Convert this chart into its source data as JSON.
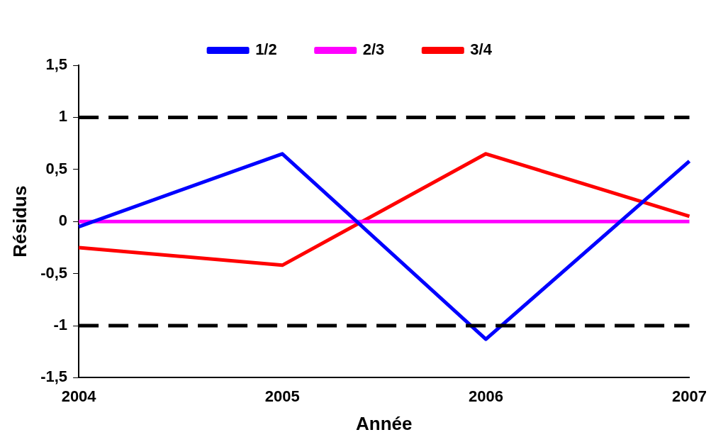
{
  "chart_data": {
    "type": "line",
    "xlabel": "Année",
    "ylabel": "Résidus",
    "categories": [
      "2004",
      "2005",
      "2006",
      "2007"
    ],
    "series": [
      {
        "name": "1/2",
        "color": "#0000ff",
        "values": [
          -0.05,
          0.65,
          -1.13,
          0.58
        ]
      },
      {
        "name": "2/3",
        "color": "#ff00ff",
        "values": [
          0,
          0,
          0,
          0
        ]
      },
      {
        "name": "3/4",
        "color": "#ff0000",
        "values": [
          -0.25,
          -0.42,
          0.65,
          0.05
        ]
      }
    ],
    "ylim": [
      -1.5,
      1.5
    ],
    "yticks": [
      {
        "value": -1.5,
        "label": "-1,5"
      },
      {
        "value": -1,
        "label": "-1"
      },
      {
        "value": -0.5,
        "label": "-0,5"
      },
      {
        "value": 0,
        "label": "0"
      },
      {
        "value": 0.5,
        "label": "0,5"
      },
      {
        "value": 1,
        "label": "1"
      },
      {
        "value": 1.5,
        "label": "1,5"
      }
    ],
    "ref_lines": [
      {
        "axis": "y",
        "value": 1,
        "color": "#000000",
        "line_style": "dashed"
      },
      {
        "axis": "y",
        "value": -1,
        "color": "#000000",
        "line_style": "dashed"
      }
    ],
    "legend": "top",
    "grid": false,
    "marker": "none",
    "line_style": "solid"
  }
}
